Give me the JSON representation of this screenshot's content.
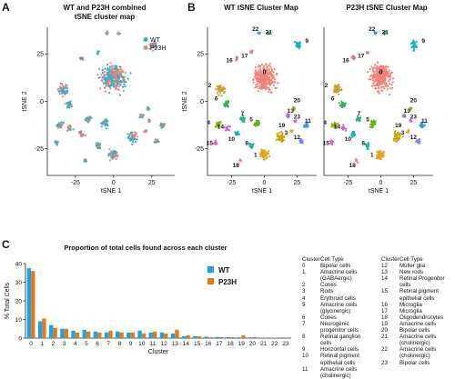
{
  "panels": {
    "A": {
      "letter": "A",
      "title_line1": "WT and P23H combined",
      "title_line2": "tSNE cluster map",
      "xlabel": "tSNE 1",
      "ylabel": "tSNE 2",
      "xticks": [
        "-25",
        "0",
        "25"
      ],
      "yticks": [
        "25",
        "0",
        "-25"
      ],
      "legend": [
        {
          "name": "WT",
          "color": "#1fb7c9"
        },
        {
          "name": "P23H",
          "color": "#f28078"
        }
      ]
    },
    "B": {
      "letter": "B",
      "title_wt": "WT tSNE Cluster Map",
      "title_p23h": "P23H tSNE Cluster Map",
      "xlabel": "tSNE 1",
      "ylabel": "tSNE 2",
      "xticks": [
        "-25",
        "0",
        "25"
      ],
      "yticks": [
        "25",
        "0",
        "-25"
      ]
    },
    "C": {
      "letter": "C"
    }
  },
  "cluster_labels": [
    "0",
    "1",
    "2",
    "3",
    "4",
    "5",
    "6",
    "7",
    "8",
    "9",
    "10",
    "11",
    "12",
    "13",
    "14",
    "15",
    "16",
    "17",
    "18",
    "19",
    "20",
    "21",
    "22",
    "23"
  ],
  "chart_data": {
    "type": "bar",
    "title": "Proportion of total cells found across each cluster",
    "xlabel": "Cluster",
    "ylabel": "% Total Cells",
    "ylim": [
      0,
      40
    ],
    "yticks": [
      0,
      10,
      20,
      30,
      40
    ],
    "categories": [
      "0",
      "1",
      "2",
      "3",
      "4",
      "5",
      "6",
      "7",
      "8",
      "9",
      "10",
      "11",
      "12",
      "13",
      "14",
      "15",
      "16",
      "17",
      "18",
      "19",
      "20",
      "21",
      "22",
      "23"
    ],
    "series": [
      {
        "name": "WT",
        "color": "#1aa3e8",
        "values": [
          37.5,
          9.0,
          7.0,
          5.0,
          4.0,
          4.5,
          3.5,
          3.0,
          3.5,
          3.0,
          4.0,
          3.0,
          3.0,
          2.5,
          1.0,
          1.0,
          0.8,
          0.6,
          0.5,
          0.4,
          0.4,
          0.2,
          0.2,
          0.1
        ]
      },
      {
        "name": "P23H",
        "color": "#e07b1a",
        "values": [
          36.0,
          10.5,
          5.5,
          5.0,
          3.0,
          3.5,
          3.0,
          4.0,
          3.0,
          3.0,
          2.5,
          3.5,
          2.5,
          4.5,
          1.5,
          1.0,
          0.5,
          0.5,
          0.5,
          1.5,
          0.5,
          0.3,
          0.2,
          0.1
        ]
      }
    ],
    "legend_position": "top-right"
  },
  "cluster_table": {
    "header": {
      "cluster": "Cluster",
      "type": "Cell Type"
    },
    "left": [
      {
        "c": "0",
        "t": [
          "Bipolar cells"
        ]
      },
      {
        "c": "1",
        "t": [
          "Amacrine cells",
          "(GABAergic)"
        ]
      },
      {
        "c": "2",
        "t": [
          "Cones"
        ]
      },
      {
        "c": "3",
        "t": [
          "Rods"
        ]
      },
      {
        "c": "4",
        "t": [
          "Erythroid cells"
        ]
      },
      {
        "c": "5",
        "t": [
          "Amacrine cells",
          "(glycinergic)"
        ]
      },
      {
        "c": "6",
        "t": [
          "Cones"
        ]
      },
      {
        "c": "7",
        "t": [
          "Neurogenic",
          "progenitor cells"
        ]
      },
      {
        "c": "8",
        "t": [
          "Retinal ganglion",
          "cells"
        ]
      },
      {
        "c": "9",
        "t": [
          "Horizontal cells"
        ]
      },
      {
        "c": "10",
        "t": [
          "Retinal pigment",
          "epithelial cells"
        ]
      },
      {
        "c": "11",
        "t": [
          "Amacrine cells",
          "(cholinergic)"
        ]
      }
    ],
    "right": [
      {
        "c": "12",
        "t": [
          "Müller glia"
        ]
      },
      {
        "c": "13",
        "t": [
          "New rods"
        ]
      },
      {
        "c": "14",
        "t": [
          "Retinal Progenitor",
          "cells"
        ]
      },
      {
        "c": "15",
        "t": [
          "Retinal pigment",
          "epithelial cells"
        ]
      },
      {
        "c": "16",
        "t": [
          "Microglia"
        ]
      },
      {
        "c": "17",
        "t": [
          "Microglia"
        ]
      },
      {
        "c": "18",
        "t": [
          "Oligodendrocytes"
        ]
      },
      {
        "c": "19",
        "t": [
          "Amacrine cells"
        ]
      },
      {
        "c": "20",
        "t": [
          "Bipolar cells"
        ]
      },
      {
        "c": "21",
        "t": [
          "Amacrine cells",
          "(cholinergic)"
        ]
      },
      {
        "c": "22",
        "t": [
          "Amacrine cells",
          "(cholinergic)"
        ]
      },
      {
        "c": "23",
        "t": [
          "Bipolar cells"
        ]
      }
    ]
  }
}
